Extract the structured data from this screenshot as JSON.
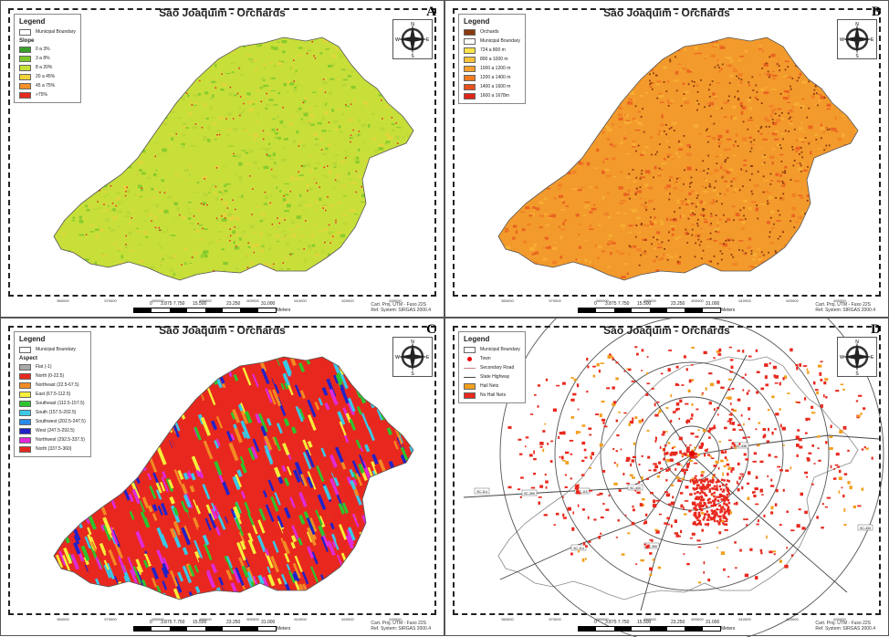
{
  "panels": [
    {
      "letter": "A",
      "title": "São Joaquim - Orchards",
      "legend_title": "Legend",
      "legend_items": [
        {
          "label": "Municipal Boundary",
          "color": "#ffffff",
          "kind": "outline"
        },
        {
          "section": "Slope"
        },
        {
          "label": "0 a 3%",
          "color": "#3aa02a"
        },
        {
          "label": "3 a 8%",
          "color": "#7ec92a"
        },
        {
          "label": "8 a 20%",
          "color": "#c8df3a"
        },
        {
          "label": "20 a 45%",
          "color": "#f2d43a"
        },
        {
          "label": "45 a 75%",
          "color": "#f2902a"
        },
        {
          "label": ">75%",
          "color": "#e8281e"
        }
      ],
      "fill_colors": [
        "#c8df3a",
        "#b6d637",
        "#e6d43c",
        "#7ec92a"
      ]
    },
    {
      "letter": "B",
      "title": "São Joaquim - Orchards",
      "legend_title": "Legend",
      "legend_items": [
        {
          "label": "Orchards",
          "color": "#8a3a10"
        },
        {
          "label": "Municipal Boundary",
          "color": "#ffffff",
          "kind": "outline"
        },
        {
          "label": "724 a 800 m",
          "color": "#ffe34a"
        },
        {
          "label": "800 a 1000 m",
          "color": "#fbc23a"
        },
        {
          "label": "1000 a 1200 m",
          "color": "#f7a02e"
        },
        {
          "label": "1200 a 1400 m",
          "color": "#ef7b22"
        },
        {
          "label": "1400 a 1600 m",
          "color": "#e8501c"
        },
        {
          "label": "1600 a 1678m",
          "color": "#df2418"
        }
      ],
      "fill_colors": [
        "#f39a2c",
        "#ee7e24",
        "#e85a1e",
        "#f7b035"
      ]
    },
    {
      "letter": "C",
      "title": "São Joaquim - Orchards",
      "legend_title": "Legend",
      "legend_items": [
        {
          "label": "Municipal Boundary",
          "color": "#ffffff",
          "kind": "outline"
        },
        {
          "section": "Aspect"
        },
        {
          "label": "Flat (-1)",
          "color": "#a8a8a8"
        },
        {
          "label": "North (0-22.5)",
          "color": "#e8281e"
        },
        {
          "label": "Northeast (22.5-67.5)",
          "color": "#f28c24"
        },
        {
          "label": "East (67.5-112.5)",
          "color": "#f6ef3a"
        },
        {
          "label": "Southeast (112.5-157.5)",
          "color": "#2ec42e"
        },
        {
          "label": "South (157.5-202.5)",
          "color": "#3ac8e8"
        },
        {
          "label": "Southwest (202.5-247.5)",
          "color": "#2a8ae8"
        },
        {
          "label": "West (247.5-292.5)",
          "color": "#2222c8"
        },
        {
          "label": "Northwest (292.5-337.5)",
          "color": "#e02ad8"
        },
        {
          "label": "North (337.5-360)",
          "color": "#e8281e"
        }
      ],
      "fill_colors": [
        "#e8281e",
        "#f6ef3a",
        "#2ec42e",
        "#3ac8e8",
        "#2222c8",
        "#e02ad8",
        "#f28c24"
      ]
    },
    {
      "letter": "D",
      "title": "São Joaquim - Orchards",
      "legend_title": "Legend",
      "legend_items": [
        {
          "label": "Municipal Boundary",
          "color": "#ffffff",
          "kind": "outline"
        },
        {
          "label": "Town",
          "color": "#e00000",
          "kind": "dot"
        },
        {
          "label": "Secondary Road",
          "color": "#d08080",
          "kind": "line"
        },
        {
          "label": "State Highway",
          "color": "#444444",
          "kind": "line"
        },
        {
          "label": "Hail Nets",
          "color": "#f2a01e"
        },
        {
          "label": "No Hail Nets",
          "color": "#e8281e"
        }
      ],
      "road_labels": [
        "SC-114",
        "SC-390",
        "SC-110",
        "SC-430",
        "SC-438",
        "SC-114",
        "SC-390",
        "SC-430"
      ]
    }
  ],
  "scale": {
    "numbers": [
      "0",
      "3.875 7.750",
      "15.500",
      "23.250",
      "31.000"
    ],
    "unit": "Meters"
  },
  "projection": {
    "line1": "Cart. Proj. UTM - Fuso 22S",
    "line2": "Ref. System: SIRGAS 2000.4"
  },
  "x_ticks": [
    "560000",
    "570000",
    "580000",
    "590000",
    "600000",
    "610000",
    "620000",
    "630000"
  ],
  "y_ticks": [
    "6890000",
    "6880000",
    "6870000",
    "6860000",
    "6850000"
  ],
  "compass": {
    "n": "N",
    "s": "S",
    "e": "E",
    "w": "W"
  }
}
